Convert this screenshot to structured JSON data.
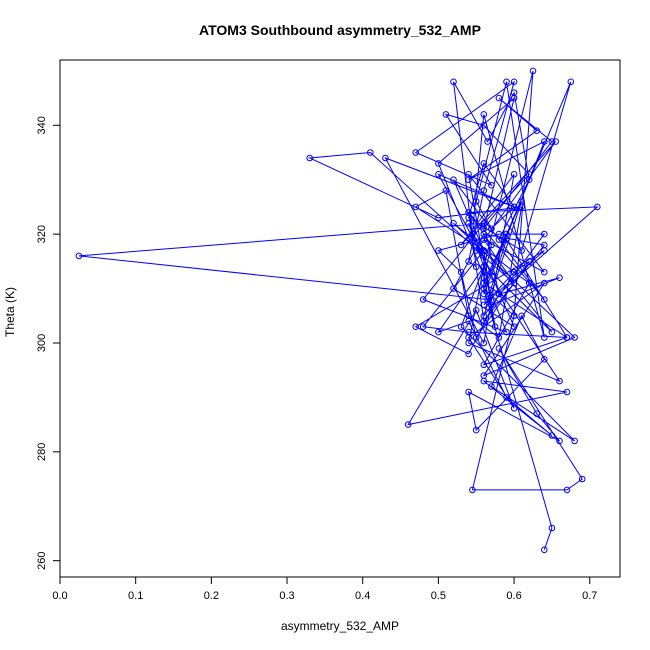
{
  "chart_data": {
    "type": "line",
    "title": "ATOM3 Southbound asymmetry_532_AMP",
    "xlabel": "asymmetry_532_AMP",
    "ylabel": "Theta (K)",
    "xlim": [
      0.0,
      0.74
    ],
    "ylim": [
      257,
      352
    ],
    "xticks": [
      0.0,
      0.1,
      0.2,
      0.3,
      0.4,
      0.5,
      0.6,
      0.7
    ],
    "yticks": [
      260,
      280,
      300,
      320,
      340
    ],
    "xtick_labels": [
      "0.0",
      "0.1",
      "0.2",
      "0.3",
      "0.4",
      "0.5",
      "0.6",
      "0.7"
    ],
    "ytick_labels": [
      "260",
      "280",
      "300",
      "320",
      "340"
    ],
    "grid": false,
    "legend": "none",
    "series_color": "#0000ff",
    "marker": "open-circle",
    "series": [
      {
        "x": [
          0.64,
          0.65,
          0.56,
          0.6,
          0.545,
          0.67,
          0.69,
          0.58,
          0.63,
          0.66,
          0.54,
          0.55,
          0.64,
          0.61,
          0.57,
          0.68,
          0.53,
          0.56,
          0.5,
          0.54,
          0.59,
          0.65,
          0.56,
          0.67,
          0.46,
          0.55,
          0.6,
          0.54,
          0.64,
          0.56,
          0.68,
          0.52,
          0.6,
          0.62,
          0.56,
          0.67,
          0.54,
          0.48,
          0.56,
          0.57,
          0.66,
          0.58,
          0.54,
          0.47,
          0.64,
          0.56,
          0.6,
          0.62,
          0.55,
          0.53,
          0.5,
          0.58,
          0.64,
          0.56,
          0.61,
          0.56,
          0.67,
          0.59,
          0.565,
          0.025,
          0.56,
          0.58,
          0.71,
          0.54,
          0.64,
          0.52,
          0.56,
          0.47,
          0.51,
          0.54,
          0.58,
          0.61,
          0.5,
          0.33,
          0.41,
          0.56,
          0.56,
          0.64,
          0.54,
          0.63,
          0.58,
          0.65,
          0.56,
          0.6,
          0.5,
          0.59,
          0.48,
          0.56,
          0.62,
          0.56,
          0.51,
          0.57,
          0.47,
          0.6,
          0.56,
          0.54,
          0.55,
          0.52,
          0.565,
          0.6,
          0.62,
          0.58,
          0.59,
          0.56,
          0.675,
          0.61,
          0.54,
          0.56,
          0.6,
          0.5,
          0.57,
          0.65,
          0.545,
          0.56,
          0.64,
          0.59,
          0.55,
          0.57,
          0.6,
          0.43,
          0.56,
          0.6,
          0.53,
          0.655,
          0.55,
          0.6,
          0.56,
          0.64,
          0.54,
          0.575,
          0.56,
          0.57,
          0.54,
          0.56,
          0.64,
          0.56,
          0.52,
          0.6,
          0.54,
          0.56,
          0.66,
          0.54,
          0.56,
          0.625,
          0.6
        ],
        "y": [
          262,
          266,
          310,
          305,
          273,
          273,
          275,
          299,
          287,
          282,
          291,
          284,
          297,
          305,
          292,
          282,
          303,
          314,
          302,
          304,
          290,
          283,
          293,
          291,
          285,
          306,
          288,
          301,
          311,
          294,
          301,
          322,
          313,
          311,
          296,
          301,
          302,
          303,
          317,
          307,
          312,
          309,
          298,
          303,
          317,
          307,
          313,
          315,
          301,
          313,
          317,
          320,
          320,
          305,
          326,
          311,
          301,
          319,
          308,
          316,
          322,
          309,
          325,
          324,
          308,
          330,
          317,
          325,
          328,
          305,
          301,
          325,
          323,
          334,
          335,
          316,
          309,
          337,
          330,
          339,
          345,
          337,
          321,
          345,
          333,
          302,
          308,
          322,
          331,
          340,
          342,
          329,
          335,
          348,
          328,
          315,
          314,
          348,
          337,
          346,
          330,
          319,
          320,
          310,
          348,
          317,
          323,
          333,
          325,
          331,
          313,
          302,
          320,
          342,
          301,
          348,
          326,
          321,
          325,
          334,
          300,
          331,
          318,
          337,
          317,
          311,
          319,
          313,
          331,
          303,
          312,
          318,
          324,
          304,
          318,
          320,
          310,
          303,
          322,
          314,
          293,
          300,
          314,
          350,
          305
        ]
      }
    ]
  }
}
